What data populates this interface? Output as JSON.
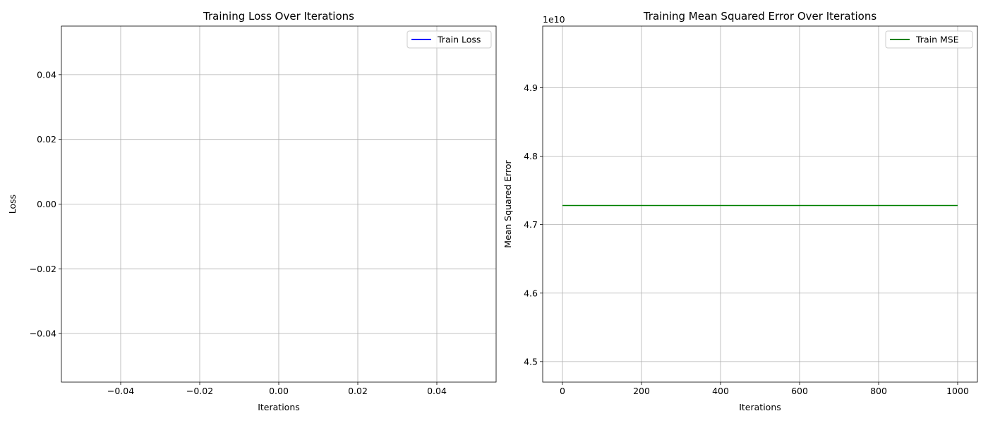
{
  "colors": {
    "background": "#ffffff",
    "grid": "#b0b0b0",
    "axis": "#000000",
    "legend_border": "#cccccc"
  },
  "chart_data": [
    {
      "type": "line",
      "title": "Training Loss Over Iterations",
      "xlabel": "Iterations",
      "ylabel": "Loss",
      "xlim": [
        -0.055,
        0.055
      ],
      "ylim": [
        -0.055,
        0.055
      ],
      "x_ticks": [
        -0.04,
        -0.02,
        0.0,
        0.02,
        0.04
      ],
      "x_tick_labels": [
        "−0.04",
        "−0.02",
        "0.00",
        "0.02",
        "0.04"
      ],
      "y_ticks": [
        -0.04,
        -0.02,
        0.0,
        0.02,
        0.04
      ],
      "y_tick_labels": [
        "−0.04",
        "−0.02",
        "0.00",
        "0.02",
        "0.04"
      ],
      "y_offset_text": "",
      "grid": true,
      "legend_position": "top-right",
      "series": [
        {
          "name": "Train Loss",
          "color": "#0000ff",
          "x": [],
          "y": []
        }
      ]
    },
    {
      "type": "line",
      "title": "Training Mean Squared Error Over Iterations",
      "xlabel": "Iterations",
      "ylabel": "Mean Squared Error",
      "xlim": [
        -50,
        1050
      ],
      "ylim": [
        4.47,
        4.99
      ],
      "x_ticks": [
        0,
        200,
        400,
        600,
        800,
        1000
      ],
      "x_tick_labels": [
        "0",
        "200",
        "400",
        "600",
        "800",
        "1000"
      ],
      "y_ticks": [
        4.5,
        4.6,
        4.7,
        4.8,
        4.9
      ],
      "y_tick_labels": [
        "4.5",
        "4.6",
        "4.7",
        "4.8",
        "4.9"
      ],
      "y_offset_text": "1e10",
      "grid": true,
      "legend_position": "top-right",
      "series": [
        {
          "name": "Train MSE",
          "color": "#008000",
          "x": [
            0,
            1000
          ],
          "y": [
            4.728,
            4.728
          ]
        }
      ]
    }
  ]
}
